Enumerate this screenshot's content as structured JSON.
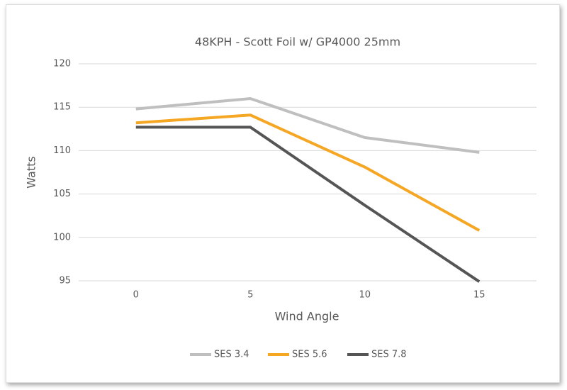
{
  "chart_data": {
    "type": "line",
    "title": "48KPH - Scott Foil w/ GP4000 25mm",
    "x_label": "Wind Angle",
    "y_label": "Watts",
    "categories": [
      "0",
      "5",
      "10",
      "15"
    ],
    "series": [
      {
        "name": "SES 3.4",
        "color": "#bfbfbf",
        "values": [
          114.8,
          116,
          111.5,
          109.8
        ]
      },
      {
        "name": "SES 5.6",
        "color": "#f5a623",
        "values": [
          113.2,
          114.1,
          108.1,
          100.8
        ]
      },
      {
        "name": "SES 7.8",
        "color": "#555555",
        "values": [
          112.7,
          112.7,
          103.7,
          94.9
        ]
      }
    ],
    "ylim": [
      95,
      120
    ],
    "yticks": [
      95,
      100,
      105,
      110,
      115,
      120
    ],
    "grid": true,
    "legend": "bottom"
  }
}
